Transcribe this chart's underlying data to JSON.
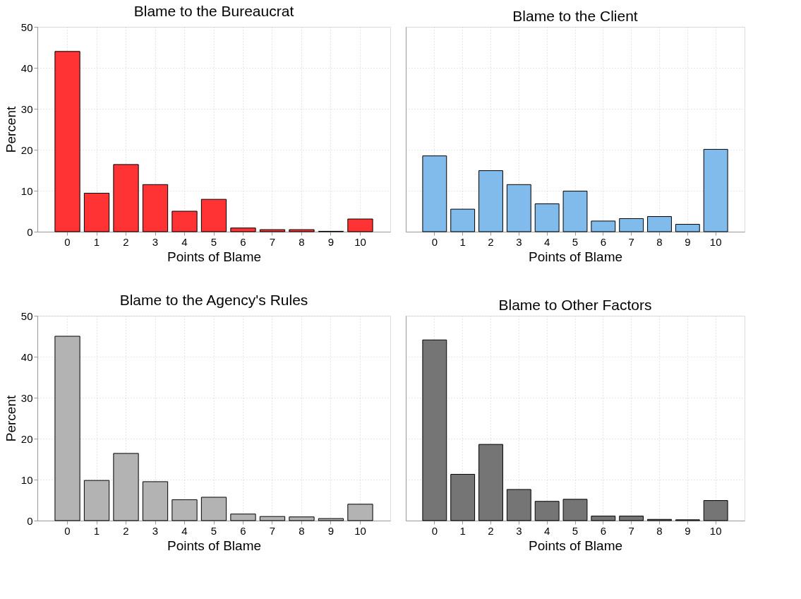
{
  "chart_data": [
    {
      "type": "bar",
      "title": "Blame to the Bureaucrat",
      "xlabel": "Points of Blame",
      "ylabel": "Percent",
      "categories": [
        "0",
        "1",
        "2",
        "3",
        "4",
        "5",
        "6",
        "7",
        "8",
        "9",
        "10"
      ],
      "values": [
        44,
        9.4,
        16.4,
        11.5,
        5.0,
        7.9,
        0.9,
        0.5,
        0.5,
        0.1,
        3.1
      ],
      "color": "#ff3333",
      "ylim": [
        0,
        50
      ],
      "yticks": [
        0,
        10,
        20,
        30,
        40,
        50
      ],
      "grid": true
    },
    {
      "type": "bar",
      "title": "Blame to the Client",
      "xlabel": "Points of Blame",
      "categories": [
        "0",
        "1",
        "2",
        "3",
        "4",
        "5",
        "6",
        "7",
        "8",
        "9",
        "10"
      ],
      "values": [
        18.5,
        5.5,
        14.9,
        11.5,
        6.8,
        9.9,
        2.6,
        3.2,
        3.7,
        1.8,
        20.1
      ],
      "color": "#80bbec",
      "ylim": [
        0,
        50
      ],
      "yticks": [
        0,
        10,
        20,
        30,
        40,
        50
      ],
      "grid": true,
      "tick_labels": "x"
    },
    {
      "type": "bar",
      "title": "Blame to the Agency's Rules",
      "xlabel": "Points of Blame",
      "ylabel": "Percent",
      "categories": [
        "0",
        "1",
        "2",
        "3",
        "4",
        "5",
        "6",
        "7",
        "8",
        "9",
        "10"
      ],
      "values": [
        45,
        9.8,
        16.4,
        9.5,
        5.1,
        5.7,
        1.6,
        1.0,
        0.9,
        0.5,
        4.0
      ],
      "color": "#b3b3b3",
      "ylim": [
        0,
        50
      ],
      "yticks": [
        0,
        10,
        20,
        30,
        40,
        50
      ],
      "grid": true
    },
    {
      "type": "bar",
      "title": "Blame to Other Factors",
      "xlabel": "Points of Blame",
      "categories": [
        "0",
        "1",
        "2",
        "3",
        "4",
        "5",
        "6",
        "7",
        "8",
        "9",
        "10"
      ],
      "values": [
        44.1,
        11.3,
        18.6,
        7.6,
        4.7,
        5.2,
        1.1,
        1.1,
        0.3,
        0.2,
        4.9
      ],
      "color": "#757575",
      "ylim": [
        0,
        50
      ],
      "yticks": [
        0,
        10,
        20,
        30,
        40,
        50
      ],
      "grid": true,
      "tick_labels": "x"
    }
  ]
}
